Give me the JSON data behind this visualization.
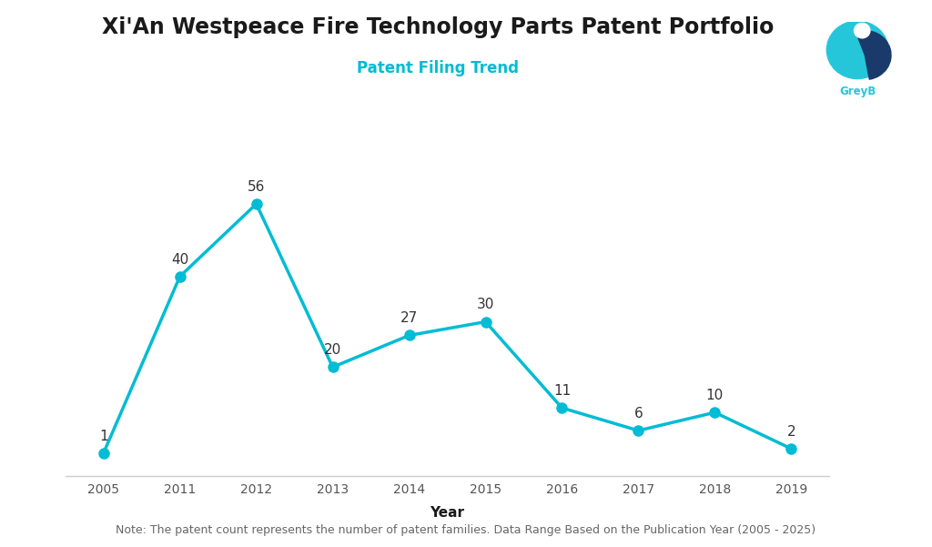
{
  "title": "Xi'An Westpeace Fire Technology Parts Patent Portfolio",
  "subtitle": "Patent Filing Trend",
  "xlabel": "Year",
  "note": "Note: The patent count represents the number of patent families. Data Range Based on the Publication Year (2005 - 2025)",
  "years": [
    "2005",
    "2011",
    "2012",
    "2013",
    "2014",
    "2015",
    "2016",
    "2017",
    "2018",
    "2019"
  ],
  "values": [
    1,
    40,
    56,
    20,
    27,
    30,
    11,
    6,
    10,
    2
  ],
  "line_color": "#00BCD4",
  "marker_color": "#00BCD4",
  "bg_color": "#FFFFFF",
  "title_color": "#1a1a1a",
  "subtitle_color": "#00BCD4",
  "xlabel_color": "#1a1a1a",
  "note_color": "#666666",
  "label_color": "#333333",
  "tick_color": "#555555",
  "title_fontsize": 17,
  "subtitle_fontsize": 12,
  "xlabel_fontsize": 11,
  "label_fontsize": 11,
  "note_fontsize": 9,
  "tick_fontsize": 10,
  "line_width": 2.5,
  "marker_size": 8
}
